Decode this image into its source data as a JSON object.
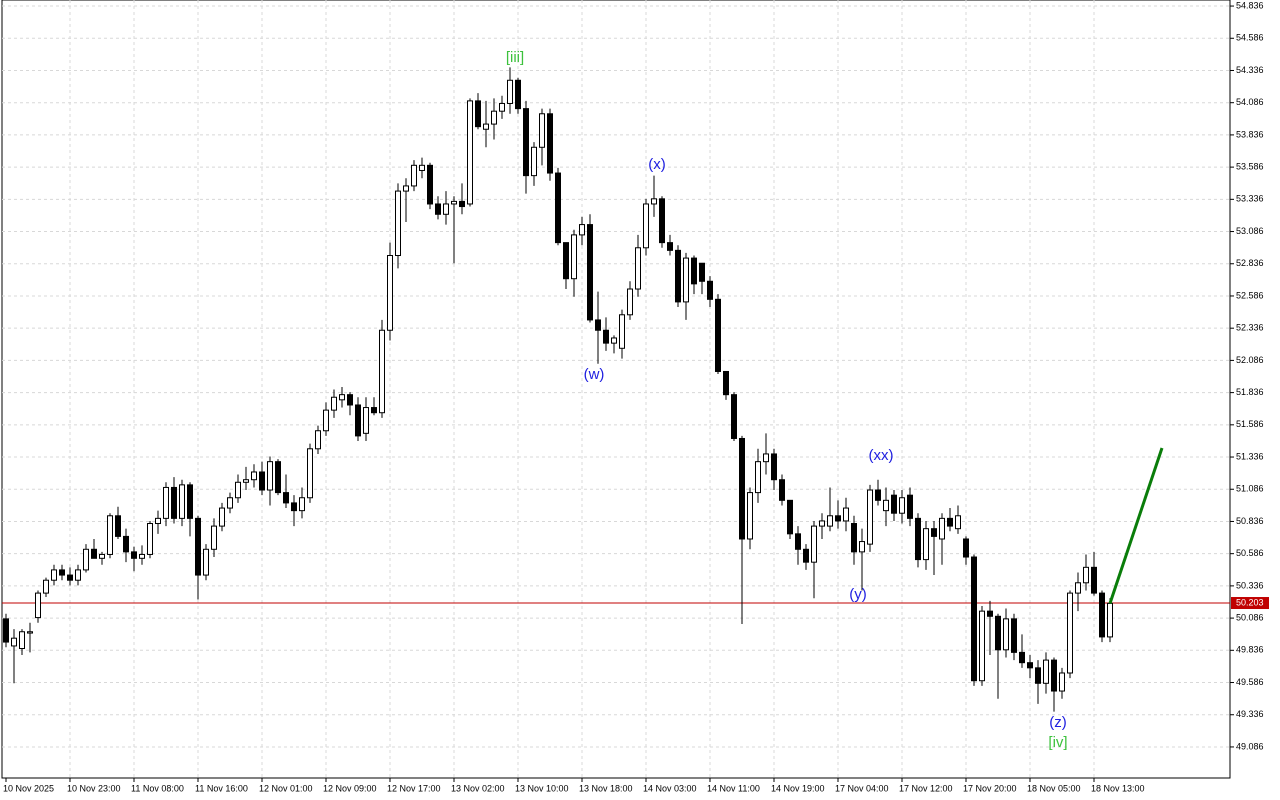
{
  "chart_data": {
    "type": "candlestick",
    "categories": [
      "10 Nov 2025",
      null,
      null,
      null,
      null,
      null,
      null,
      null,
      "10 Nov 23:00",
      null,
      null,
      null,
      null,
      null,
      null,
      null,
      "11 Nov 08:00",
      null,
      null,
      null,
      null,
      null,
      null,
      null,
      "11 Nov 16:00",
      null,
      null,
      null,
      null,
      null,
      null,
      null,
      "12 Nov 01:00",
      null,
      null,
      null,
      null,
      null,
      null,
      null,
      "12 Nov 09:00",
      null,
      null,
      null,
      null,
      null,
      null,
      null,
      "12 Nov 17:00",
      null,
      null,
      null,
      null,
      null,
      null,
      null,
      "13 Nov 02:00",
      null,
      null,
      null,
      null,
      null,
      null,
      null,
      "13 Nov 10:00",
      null,
      null,
      null,
      null,
      null,
      null,
      null,
      "13 Nov 18:00",
      null,
      null,
      null,
      null,
      null,
      null,
      null,
      "14 Nov 03:00",
      null,
      null,
      null,
      null,
      null,
      null,
      null,
      "14 Nov 11:00",
      null,
      null,
      null,
      null,
      null,
      null,
      null,
      "14 Nov 19:00",
      null,
      null,
      null,
      null,
      null,
      null,
      null,
      "17 Nov 04:00",
      null,
      null,
      null,
      null,
      null,
      null,
      null,
      "17 Nov 12:00",
      null,
      null,
      null,
      null,
      null,
      null,
      null,
      "17 Nov 20:00",
      null,
      null,
      null,
      null,
      null,
      null,
      null,
      "18 Nov 05:00",
      null,
      null,
      null,
      null,
      null,
      null,
      null,
      "18 Nov 13:00",
      null,
      null
    ],
    "open": [
      50.08,
      49.87,
      49.85,
      49.97,
      50.09,
      50.28,
      50.38,
      50.46,
      50.42,
      50.38,
      50.46,
      50.62,
      50.55,
      50.58,
      50.88,
      50.72,
      50.6,
      50.55,
      50.58,
      50.82,
      50.86,
      51.1,
      50.86,
      51.12,
      50.86,
      50.42,
      50.62,
      50.8,
      50.94,
      51.02,
      51.14,
      51.16,
      51.22,
      51.08,
      51.3,
      51.06,
      50.98,
      50.92,
      51.02,
      51.4,
      51.54,
      51.7,
      51.78,
      51.82,
      51.74,
      51.52,
      51.72,
      51.68,
      52.32,
      52.9,
      53.4,
      53.44,
      53.56,
      53.6,
      53.3,
      53.22,
      53.3,
      53.32,
      53.3,
      54.1,
      53.88,
      53.92,
      54.02,
      54.08,
      54.26,
      54.04,
      53.52,
      53.74,
      54.0,
      53.54,
      53.0,
      52.72,
      53.06,
      53.14,
      52.4,
      52.32,
      52.22,
      52.18,
      52.44,
      52.64,
      52.96,
      53.3,
      53.34,
      53.0,
      52.94,
      52.54,
      52.88,
      52.84,
      52.7,
      52.56,
      52.0,
      51.82,
      51.48,
      50.7,
      51.06,
      51.3,
      51.36,
      51.16,
      51.0,
      50.74,
      50.62,
      50.52,
      50.8,
      50.8,
      50.88,
      50.84,
      50.82,
      50.6,
      50.66,
      51.08,
      50.92,
      51.04,
      50.9,
      51.04,
      50.86,
      50.54,
      50.78,
      50.7,
      50.86,
      50.78,
      50.7,
      50.56,
      49.6,
      50.14,
      50.1,
      49.84,
      50.08,
      49.82,
      49.74,
      49.7,
      49.58,
      49.76,
      49.52,
      49.66,
      50.28,
      50.36,
      50.48,
      50.28,
      49.94
    ],
    "high": [
      50.12,
      50.0,
      50.0,
      50.05,
      50.3,
      50.4,
      50.5,
      50.5,
      50.48,
      50.5,
      50.66,
      50.7,
      50.6,
      50.9,
      50.95,
      50.78,
      50.64,
      50.65,
      50.84,
      50.92,
      51.14,
      51.18,
      51.16,
      51.14,
      50.88,
      50.66,
      50.86,
      50.98,
      51.06,
      51.2,
      51.26,
      51.28,
      51.3,
      51.34,
      51.32,
      51.2,
      51.04,
      51.1,
      51.44,
      51.58,
      51.76,
      51.86,
      51.88,
      51.84,
      51.8,
      51.8,
      51.8,
      52.4,
      53.0,
      53.46,
      53.5,
      53.64,
      53.66,
      53.62,
      53.36,
      53.4,
      53.36,
      53.46,
      54.12,
      54.16,
      54.1,
      54.12,
      54.14,
      54.36,
      54.28,
      54.1,
      53.78,
      54.04,
      54.04,
      53.58,
      53.0,
      53.1,
      53.2,
      53.22,
      52.62,
      52.42,
      52.28,
      52.48,
      52.7,
      53.06,
      53.34,
      53.52,
      53.36,
      53.06,
      52.98,
      52.92,
      52.9,
      52.84,
      52.74,
      52.6,
      52.0,
      51.84,
      51.5,
      51.1,
      51.4,
      51.52,
      51.4,
      51.2,
      51.0,
      50.8,
      50.66,
      50.84,
      50.9,
      51.1,
      51.0,
      51.02,
      50.88,
      50.78,
      51.12,
      51.16,
      51.1,
      51.08,
      51.08,
      51.1,
      50.9,
      50.84,
      50.84,
      50.9,
      50.94,
      50.96,
      50.72,
      50.58,
      50.18,
      50.22,
      50.12,
      50.16,
      50.12,
      49.96,
      49.8,
      49.76,
      49.82,
      49.78,
      49.7,
      50.3,
      50.44,
      50.58,
      50.6,
      50.3,
      50.24
    ],
    "low": [
      49.86,
      49.58,
      49.8,
      49.82,
      50.05,
      50.25,
      50.34,
      50.38,
      50.34,
      50.34,
      50.44,
      50.55,
      50.5,
      50.55,
      50.7,
      50.52,
      50.45,
      50.5,
      50.55,
      50.74,
      50.8,
      50.82,
      50.8,
      50.72,
      50.23,
      50.38,
      50.56,
      50.76,
      50.9,
      50.98,
      51.08,
      51.1,
      51.04,
      50.96,
      51.04,
      50.94,
      50.8,
      50.86,
      50.98,
      51.36,
      51.5,
      51.64,
      51.72,
      51.66,
      51.46,
      51.46,
      51.66,
      51.64,
      52.24,
      52.8,
      53.16,
      53.4,
      53.5,
      53.26,
      53.18,
      53.14,
      52.84,
      53.22,
      53.28,
      53.88,
      53.74,
      53.8,
      53.96,
      54.0,
      54.0,
      53.38,
      53.44,
      53.6,
      53.48,
      52.98,
      52.64,
      52.58,
      52.98,
      52.38,
      52.06,
      52.16,
      52.14,
      52.1,
      52.4,
      52.58,
      52.9,
      53.2,
      52.96,
      52.9,
      52.5,
      52.4,
      52.6,
      52.6,
      52.5,
      51.98,
      51.78,
      51.46,
      50.04,
      50.62,
      50.98,
      51.2,
      51.08,
      50.96,
      50.7,
      50.5,
      50.46,
      50.24,
      50.7,
      50.76,
      50.78,
      50.76,
      50.5,
      50.3,
      50.6,
      50.96,
      50.8,
      50.84,
      50.82,
      50.8,
      50.48,
      50.46,
      50.42,
      50.5,
      50.76,
      50.74,
      50.5,
      49.56,
      49.56,
      49.8,
      49.46,
      49.78,
      49.76,
      49.7,
      49.62,
      49.42,
      49.5,
      49.36,
      49.46,
      49.62,
      50.14,
      50.3,
      50.26,
      49.9,
      49.9
    ],
    "close": [
      49.9,
      49.93,
      49.98,
      49.98,
      50.28,
      50.38,
      50.46,
      50.42,
      50.38,
      50.46,
      50.62,
      50.55,
      50.58,
      50.88,
      50.72,
      50.6,
      50.55,
      50.58,
      50.82,
      50.86,
      51.1,
      50.86,
      51.12,
      50.86,
      50.42,
      50.62,
      50.8,
      50.94,
      51.02,
      51.14,
      51.16,
      51.22,
      51.08,
      51.3,
      51.06,
      50.98,
      50.92,
      51.02,
      51.4,
      51.54,
      51.7,
      51.8,
      51.82,
      51.74,
      51.5,
      51.72,
      51.68,
      52.32,
      52.9,
      53.4,
      53.44,
      53.6,
      53.6,
      53.3,
      53.22,
      53.3,
      53.32,
      53.28,
      54.1,
      53.9,
      53.92,
      54.02,
      54.08,
      54.26,
      54.04,
      53.52,
      53.74,
      54.0,
      53.54,
      53.0,
      52.72,
      53.06,
      53.14,
      52.4,
      52.32,
      52.22,
      52.26,
      52.44,
      52.64,
      52.96,
      53.3,
      53.34,
      53.0,
      52.94,
      52.54,
      52.88,
      52.68,
      52.7,
      52.56,
      52.0,
      51.82,
      51.48,
      50.7,
      51.06,
      51.3,
      51.36,
      51.16,
      51.0,
      50.74,
      50.62,
      50.52,
      50.8,
      50.84,
      50.88,
      50.84,
      50.94,
      50.6,
      50.68,
      51.08,
      51.0,
      51.0,
      50.9,
      51.02,
      50.86,
      50.54,
      50.78,
      50.72,
      50.86,
      50.8,
      50.88,
      50.56,
      49.6,
      50.14,
      50.1,
      49.84,
      50.08,
      49.82,
      49.74,
      49.7,
      49.58,
      49.76,
      49.52,
      49.66,
      50.28,
      50.36,
      50.48,
      50.28,
      49.94,
      50.2
    ],
    "ylim": [
      48.845,
      54.883
    ],
    "yticks": [
      49.086,
      49.336,
      49.586,
      49.836,
      50.086,
      50.336,
      50.586,
      50.836,
      51.086,
      51.336,
      51.586,
      51.836,
      52.086,
      52.336,
      52.586,
      52.836,
      53.086,
      53.336,
      53.586,
      53.836,
      54.086,
      54.336,
      54.586,
      54.836
    ],
    "grid": true,
    "up_color": "#ffffff",
    "down_color": "#000000",
    "current_price": 50.203,
    "current_price_color": "#c00000",
    "projection_color": "#0a7d0a",
    "annotations": [
      {
        "text": "[iii]",
        "color": "#3cc13c"
      },
      {
        "text": "(x)",
        "color": "#2020e0"
      },
      {
        "text": "(w)",
        "color": "#2020e0"
      },
      {
        "text": "(xx)",
        "color": "#2020e0"
      },
      {
        "text": "(y)",
        "color": "#2020e0"
      },
      {
        "text": "(z)",
        "color": "#2020e0"
      },
      {
        "text": "[iv]",
        "color": "#3cc13c"
      }
    ]
  }
}
